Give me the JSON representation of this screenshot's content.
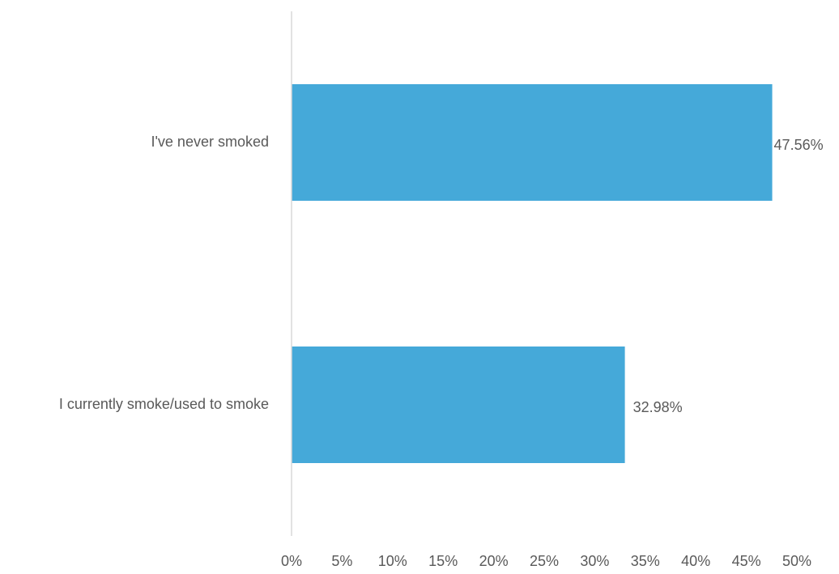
{
  "chart_data": {
    "type": "bar",
    "orientation": "horizontal",
    "categories": [
      "I've never smoked",
      "I currently smoke/used to smoke"
    ],
    "values": [
      47.56,
      32.98
    ],
    "data_labels": [
      "47.56%",
      "32.98%"
    ],
    "x_ticks": [
      "0%",
      "5%",
      "10%",
      "15%",
      "20%",
      "25%",
      "30%",
      "35%",
      "40%",
      "45%",
      "50%"
    ],
    "xlim": [
      0,
      50
    ],
    "title": "",
    "xlabel": "",
    "ylabel": "",
    "grid": false,
    "legend": "none",
    "colors": {
      "bar": "#45a9d9",
      "axis": "#d9d9d9",
      "text": "#595959"
    }
  }
}
